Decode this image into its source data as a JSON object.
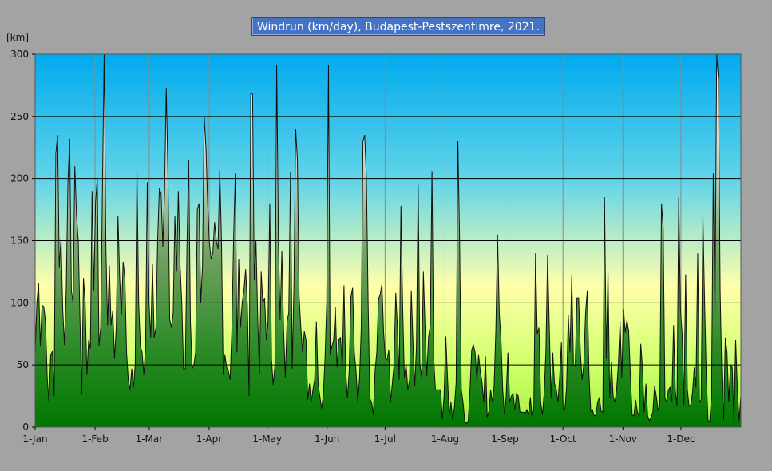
{
  "title": "Windrun (km/day), Budapest-Pestszentimre, 2021.",
  "unit": "[km]",
  "colors": {
    "background": "#a3a3a3",
    "sky_top": "#00aaee",
    "sky_mid": "#ffffaa",
    "green_mid": "#99dd55",
    "green_bottom": "#007700",
    "series_line": "#111111"
  },
  "chart_data": {
    "type": "area",
    "title": "Windrun (km/day), Budapest-Pestszentimre, 2021.",
    "ylabel": "[km]",
    "xlabel": "",
    "ylim": [
      0,
      300
    ],
    "yticks": [
      0,
      50,
      100,
      150,
      200,
      250,
      300
    ],
    "x_ticks": [
      {
        "label": "1-Jan",
        "day": 0
      },
      {
        "label": "1-Feb",
        "day": 31
      },
      {
        "label": "1-Mar",
        "day": 59
      },
      {
        "label": "1-Apr",
        "day": 90
      },
      {
        "label": "1-May",
        "day": 120
      },
      {
        "label": "1-Jun",
        "day": 151
      },
      {
        "label": "1-Jul",
        "day": 181
      },
      {
        "label": "1-Aug",
        "day": 212
      },
      {
        "label": "1-Sep",
        "day": 243
      },
      {
        "label": "1-Oct",
        "day": 273
      },
      {
        "label": "1-Nov",
        "day": 304
      },
      {
        "label": "1-Dec",
        "day": 334
      }
    ],
    "grid": true,
    "series": [
      {
        "values": [
          60,
          100,
          116,
          65,
          98,
          97,
          85,
          40,
          20,
          58,
          61,
          25,
          220,
          235,
          128,
          152,
          95,
          66,
          110,
          196,
          232,
          110,
          100,
          210,
          170,
          150,
          86,
          27,
          120,
          100,
          42,
          70,
          63,
          190,
          110,
          180,
          200,
          65,
          80,
          190,
          300,
          145,
          82,
          130,
          82,
          94,
          55,
          80,
          170,
          120,
          90,
          133,
          120,
          60,
          38,
          30,
          47,
          32,
          50,
          207,
          100,
          65,
          60,
          42,
          65,
          197,
          100,
          72,
          131,
          72,
          80,
          150,
          192,
          188,
          145,
          188,
          273,
          200,
          87,
          80,
          92,
          170,
          125,
          190,
          130,
          100,
          47,
          47,
          145,
          215,
          85,
          47,
          50,
          60,
          175,
          180,
          100,
          130,
          250,
          225,
          180,
          148,
          135,
          140,
          165,
          150,
          143,
          207,
          150,
          42,
          58,
          48,
          45,
          38,
          77,
          150,
          204,
          60,
          135,
          80,
          100,
          110,
          127,
          98,
          25,
          268,
          268,
          118,
          150,
          88,
          43,
          125,
          100,
          104,
          70,
          85,
          180,
          54,
          34,
          50,
          291,
          150,
          86,
          142,
          78,
          40,
          85,
          92,
          205,
          47,
          115,
          240,
          215,
          105,
          80,
          60,
          77,
          70,
          22,
          35,
          20,
          30,
          38,
          85,
          35,
          25,
          15,
          25,
          55,
          100,
          291,
          58,
          65,
          70,
          97,
          48,
          70,
          72,
          48,
          114,
          45,
          23,
          45,
          105,
          112,
          60,
          45,
          20,
          39,
          80,
          230,
          235,
          200,
          100,
          23,
          20,
          10,
          45,
          60,
          103,
          107,
          115,
          75,
          55,
          54,
          62,
          20,
          35,
          50,
          108,
          80,
          38,
          178,
          98,
          40,
          50,
          30,
          38,
          110,
          67,
          33,
          65,
          195,
          50,
          40,
          125,
          80,
          41,
          72,
          82,
          206,
          55,
          30,
          30,
          30,
          30,
          6,
          25,
          73,
          40,
          9,
          20,
          6,
          16,
          36,
          230,
          150,
          30,
          20,
          5,
          3,
          5,
          30,
          62,
          66,
          60,
          38,
          58,
          45,
          36,
          20,
          57,
          8,
          13,
          30,
          20,
          33,
          78,
          155,
          92,
          70,
          30,
          10,
          25,
          60,
          20,
          25,
          27,
          14,
          27,
          25,
          12,
          12,
          12,
          11,
          14,
          10,
          24,
          8,
          15,
          140,
          75,
          80,
          20,
          10,
          27,
          60,
          138,
          80,
          23,
          60,
          35,
          31,
          20,
          40,
          68,
          14,
          14,
          32,
          90,
          60,
          122,
          50,
          49,
          104,
          104,
          60,
          38,
          51,
          92,
          110,
          42,
          13,
          14,
          9,
          10,
          20,
          24,
          13,
          12,
          185,
          55,
          125,
          23,
          52,
          25,
          20,
          30,
          50,
          85,
          40,
          95,
          76,
          86,
          77,
          41,
          10,
          9,
          22,
          13,
          8,
          67,
          47,
          12,
          35,
          9,
          5,
          8,
          12,
          33,
          25,
          14,
          17,
          180,
          160,
          24,
          20,
          30,
          32,
          21,
          82,
          30,
          17,
          185,
          95,
          74,
          18,
          123,
          30,
          17,
          18,
          28,
          48,
          32,
          140,
          20,
          22,
          170,
          100,
          40,
          5,
          5,
          25,
          204,
          90,
          300,
          280,
          110,
          40,
          6,
          72,
          60,
          20,
          50,
          48,
          5,
          70,
          30,
          5,
          25
        ]
      }
    ]
  }
}
